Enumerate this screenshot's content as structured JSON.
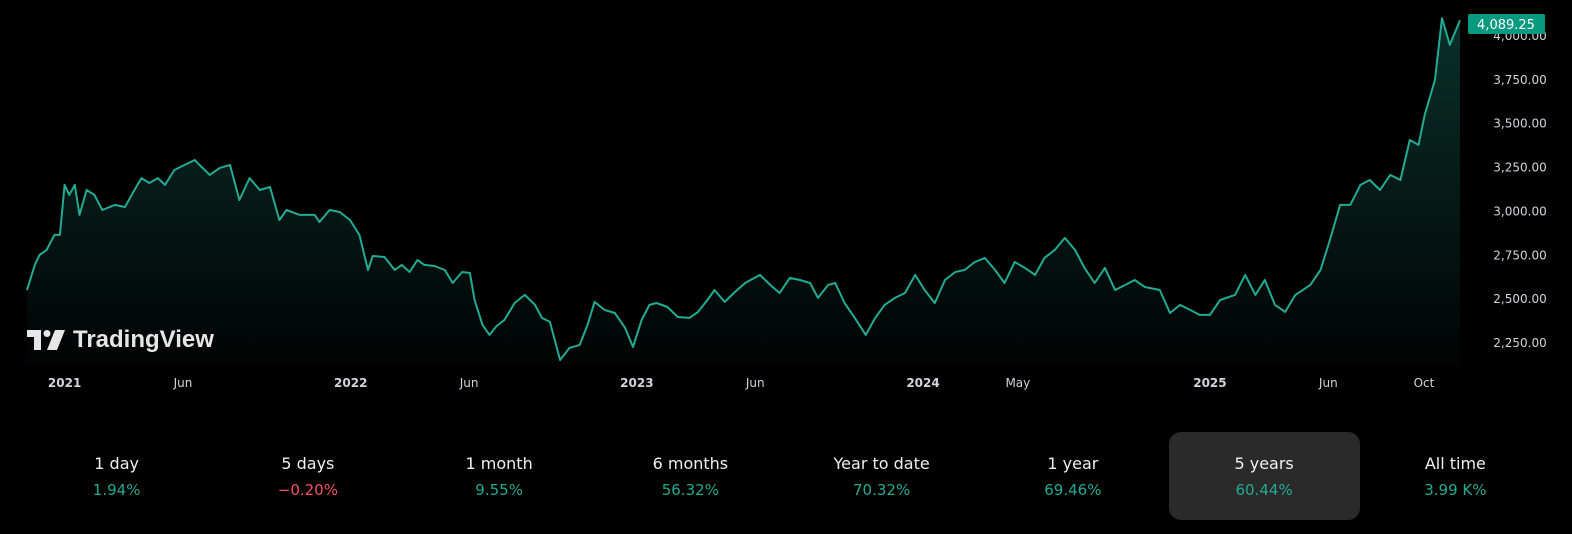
{
  "chart_data": {
    "type": "area",
    "last_price_label": "4,089.25",
    "y_ticks": [
      "2,250.00",
      "2,500.00",
      "2,750.00",
      "3,000.00",
      "3,250.00",
      "3,500.00",
      "3,750.00",
      "4,000.00"
    ],
    "y_tick_values": [
      2250,
      2500,
      2750,
      3000,
      3250,
      3500,
      3750,
      4000
    ],
    "ylim": [
      2250,
      4000
    ],
    "x_ticks": [
      {
        "label": "2021",
        "date": "2021-01-01",
        "year": true
      },
      {
        "label": "Jun",
        "date": "2021-06-01",
        "year": false
      },
      {
        "label": "2022",
        "date": "2022-01-01",
        "year": true
      },
      {
        "label": "Jun",
        "date": "2022-06-01",
        "year": false
      },
      {
        "label": "2023",
        "date": "2023-01-01",
        "year": true
      },
      {
        "label": "Jun",
        "date": "2023-06-01",
        "year": false
      },
      {
        "label": "2024",
        "date": "2024-01-01",
        "year": true
      },
      {
        "label": "May",
        "date": "2024-05-01",
        "year": false
      },
      {
        "label": "2025",
        "date": "2025-01-01",
        "year": true
      },
      {
        "label": "Jun",
        "date": "2025-06-01",
        "year": false
      },
      {
        "label": "Oct",
        "date": "2025-10-01",
        "year": false
      }
    ],
    "grid": false,
    "colors": {
      "line": "#22ab94",
      "label_bg": "#089981",
      "positive": "#22ab94",
      "negative": "#f7525f"
    },
    "dates": [
      "2020-11-14",
      "2020-11-24",
      "2020-11-30",
      "2020-12-09",
      "2020-12-19",
      "2020-12-26",
      "2021-01-01",
      "2021-01-07",
      "2021-01-14",
      "2021-01-20",
      "2021-01-29",
      "2021-02-08",
      "2021-02-18",
      "2021-03-06",
      "2021-03-19",
      "2021-03-31",
      "2021-04-09",
      "2021-04-19",
      "2021-04-30",
      "2021-05-09",
      "2021-05-21",
      "2021-06-03",
      "2021-06-16",
      "2021-06-22",
      "2021-07-05",
      "2021-07-18",
      "2021-07-31",
      "2021-08-12",
      "2021-08-25",
      "2021-09-07",
      "2021-09-20",
      "2021-10-02",
      "2021-10-11",
      "2021-10-28",
      "2021-11-16",
      "2021-11-22",
      "2021-12-05",
      "2021-12-18",
      "2021-12-31",
      "2022-01-12",
      "2022-01-23",
      "2022-01-29",
      "2022-02-13",
      "2022-02-26",
      "2022-03-07",
      "2022-03-17",
      "2022-03-27",
      "2022-04-05",
      "2022-04-18",
      "2022-05-01",
      "2022-05-11",
      "2022-05-23",
      "2022-06-02",
      "2022-06-08",
      "2022-06-18",
      "2022-06-27",
      "2022-07-06",
      "2022-07-16",
      "2022-07-29",
      "2022-08-11",
      "2022-08-24",
      "2022-09-02",
      "2022-09-12",
      "2022-09-25",
      "2022-10-07",
      "2022-10-20",
      "2022-10-30",
      "2022-11-08",
      "2022-11-21",
      "2022-12-04",
      "2022-12-17",
      "2022-12-27",
      "2023-01-07",
      "2023-01-17",
      "2023-01-26",
      "2023-02-09",
      "2023-02-22",
      "2023-03-09",
      "2023-03-20",
      "2023-04-01",
      "2023-04-10",
      "2023-04-23",
      "2023-05-06",
      "2023-05-19",
      "2023-06-07",
      "2023-06-20",
      "2023-07-02",
      "2023-07-15",
      "2023-07-28",
      "2023-08-10",
      "2023-08-20",
      "2023-09-02",
      "2023-09-11",
      "2023-09-23",
      "2023-10-06",
      "2023-10-20",
      "2023-11-01",
      "2023-11-13",
      "2023-11-26",
      "2023-12-09",
      "2023-12-22",
      "2024-01-03",
      "2024-01-16",
      "2024-01-29",
      "2024-02-11",
      "2024-02-23",
      "2024-03-07",
      "2024-03-20",
      "2024-04-02",
      "2024-04-14",
      "2024-04-27",
      "2024-05-10",
      "2024-05-23",
      "2024-06-04",
      "2024-06-17",
      "2024-06-30",
      "2024-07-13",
      "2024-07-25",
      "2024-08-07",
      "2024-08-20",
      "2024-09-02",
      "2024-09-15",
      "2024-09-27",
      "2024-10-10",
      "2024-10-29",
      "2024-11-11",
      "2024-11-24",
      "2024-12-07",
      "2024-12-19",
      "2025-01-01",
      "2025-01-14",
      "2025-02-02",
      "2025-02-15",
      "2025-02-28",
      "2025-03-12",
      "2025-03-25",
      "2025-04-07",
      "2025-04-20",
      "2025-05-09",
      "2025-05-22",
      "2025-06-03",
      "2025-06-16",
      "2025-06-29",
      "2025-07-12",
      "2025-07-24",
      "2025-08-06",
      "2025-08-19",
      "2025-09-01",
      "2025-09-13",
      "2025-09-24",
      "2025-10-02",
      "2025-10-15",
      "2025-10-24",
      "2025-11-03",
      "2025-11-16"
    ],
    "values": [
      2552,
      2695,
      2752,
      2780,
      2866,
      2866,
      3151,
      3094,
      3151,
      2980,
      3122,
      3094,
      3008,
      3037,
      3025,
      3122,
      3190,
      3162,
      3190,
      3151,
      3236,
      3265,
      3293,
      3265,
      3208,
      3248,
      3265,
      3065,
      3190,
      3122,
      3139,
      2951,
      3008,
      2980,
      2980,
      2940,
      3008,
      2997,
      2951,
      2866,
      2666,
      2746,
      2740,
      2666,
      2695,
      2655,
      2723,
      2695,
      2689,
      2666,
      2592,
      2655,
      2649,
      2495,
      2353,
      2296,
      2347,
      2381,
      2478,
      2524,
      2467,
      2393,
      2370,
      2153,
      2222,
      2239,
      2353,
      2484,
      2438,
      2421,
      2336,
      2227,
      2381,
      2467,
      2478,
      2455,
      2398,
      2393,
      2427,
      2495,
      2552,
      2484,
      2541,
      2592,
      2638,
      2581,
      2535,
      2621,
      2609,
      2592,
      2507,
      2581,
      2592,
      2478,
      2393,
      2296,
      2393,
      2467,
      2507,
      2535,
      2638,
      2552,
      2478,
      2609,
      2655,
      2666,
      2712,
      2735,
      2666,
      2592,
      2712,
      2678,
      2638,
      2735,
      2780,
      2849,
      2780,
      2678,
      2592,
      2678,
      2552,
      2581,
      2609,
      2569,
      2552,
      2421,
      2467,
      2438,
      2410,
      2410,
      2495,
      2524,
      2638,
      2524,
      2609,
      2467,
      2427,
      2524,
      2581,
      2666,
      2837,
      3037,
      3037,
      3151,
      3179,
      3122,
      3208,
      3179,
      3407,
      3379,
      3550,
      3749,
      4102,
      3949,
      4089.25
    ]
  },
  "logo": "TradingView",
  "periods": [
    {
      "label": "1 day",
      "value": "1.94%",
      "positive": true,
      "active": false
    },
    {
      "label": "5 days",
      "value": "−0.20%",
      "positive": false,
      "active": false
    },
    {
      "label": "1 month",
      "value": "9.55%",
      "positive": true,
      "active": false
    },
    {
      "label": "6 months",
      "value": "56.32%",
      "positive": true,
      "active": false
    },
    {
      "label": "Year to date",
      "value": "70.32%",
      "positive": true,
      "active": false
    },
    {
      "label": "1 year",
      "value": "69.46%",
      "positive": true,
      "active": false
    },
    {
      "label": "5 years",
      "value": "60.44%",
      "positive": true,
      "active": true
    },
    {
      "label": "All time",
      "value": "3.99 K%",
      "positive": true,
      "active": false
    }
  ]
}
